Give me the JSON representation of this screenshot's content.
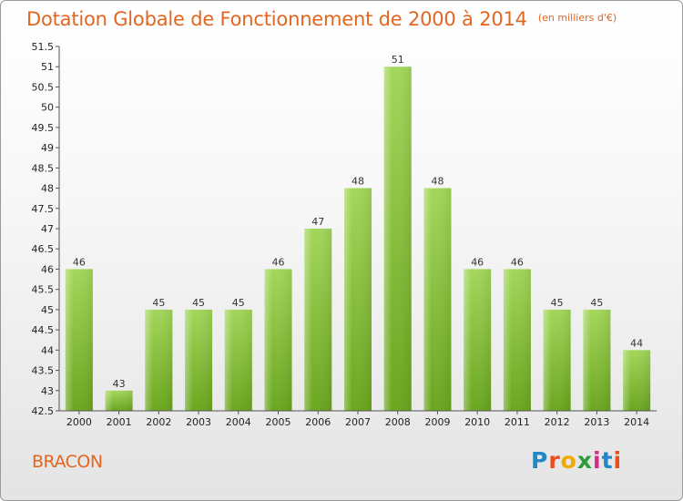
{
  "chart_data": {
    "type": "bar",
    "title": "Dotation Globale de Fonctionnement de 2000 à 2014",
    "subtitle": "(en milliers d'€)",
    "categories": [
      "2000",
      "2001",
      "2002",
      "2003",
      "2004",
      "2005",
      "2006",
      "2007",
      "2008",
      "2009",
      "2010",
      "2011",
      "2012",
      "2013",
      "2014"
    ],
    "values": [
      46,
      43,
      45,
      45,
      45,
      46,
      47,
      48,
      51,
      48,
      46,
      46,
      45,
      45,
      44
    ],
    "data_labels": [
      "46",
      "43",
      "45",
      "45",
      "45",
      "46",
      "47",
      "48",
      "51",
      "48",
      "46",
      "46",
      "45",
      "45",
      "44"
    ],
    "ylim": [
      42.5,
      51.5
    ],
    "yticks": [
      "42.5",
      "43",
      "43.5",
      "44",
      "44.5",
      "45",
      "45.5",
      "46",
      "46.5",
      "47",
      "47.5",
      "48",
      "48.5",
      "49",
      "49.5",
      "50",
      "50.5",
      "51",
      "51.5"
    ],
    "grid": false,
    "bar_color": "#8cc63f"
  },
  "footer": {
    "commune": "BRACON",
    "logo_letters": [
      "P",
      "r",
      "o",
      "x",
      "i",
      "t",
      "i"
    ]
  }
}
